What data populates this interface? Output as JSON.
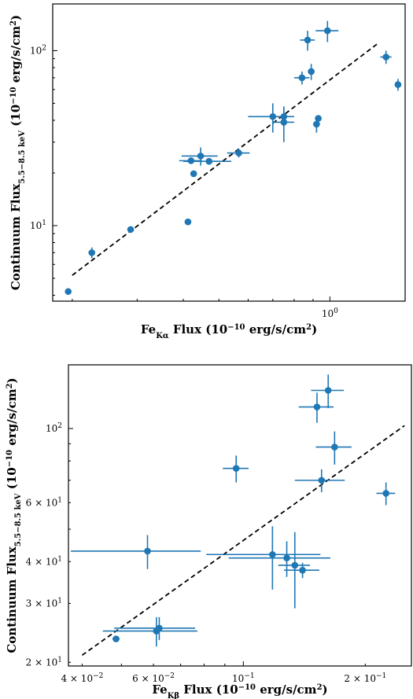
{
  "chart_data": [
    {
      "type": "scatter",
      "title": "",
      "xlabel": "Fe_Kα Flux (10^-10 erg/s/cm^2)",
      "ylabel": "Continuum Flux_5.5-8.5 keV (10^-10 erg/s/cm^2)",
      "xlabel_parts": {
        "main": "Fe",
        "sub": "Kα",
        "rest": " Flux (10",
        "exp": "−10",
        "rest2": " erg/s/cm",
        "exp2": "2",
        "end": ")"
      },
      "ylabel_parts": {
        "main": "Continuum Flux",
        "sub": "5.5−8.5 keV",
        "rest": " (10",
        "exp": "−10",
        "rest2": " erg/s/cm",
        "exp2": "2",
        "end": ")"
      },
      "x_scale": "log",
      "y_scale": "log",
      "xlim": [
        0.177,
        1.6
      ],
      "ylim": [
        3.7,
        185
      ],
      "x_ticks": [
        {
          "value": 1.0,
          "label": "10",
          "exp": "0"
        }
      ],
      "y_ticks": [
        {
          "value": 10,
          "label": "10",
          "exp": "1"
        },
        {
          "value": 100,
          "label": "10",
          "exp": "2"
        }
      ],
      "fit_line": {
        "x": [
          0.2,
          1.35
        ],
        "y": [
          5.2,
          110
        ],
        "style": "dashed",
        "color": "#000000"
      },
      "color": "#1f77b4",
      "points": [
        {
          "x": 0.195,
          "y": 4.2
        },
        {
          "x": 0.226,
          "y": 7.0,
          "xerr": 0.003,
          "yerr": 0.5
        },
        {
          "x": 0.288,
          "y": 9.5
        },
        {
          "x": 0.412,
          "y": 10.5
        },
        {
          "x": 0.42,
          "y": 23.5,
          "xerr": 0.03,
          "yerr": 1.0
        },
        {
          "x": 0.446,
          "y": 25.0,
          "xerr": 0.05,
          "yerr": 3.0
        },
        {
          "x": 0.427,
          "y": 19.8
        },
        {
          "x": 0.47,
          "y": 23.3,
          "xerr": 0.07,
          "yerr": 1.0
        },
        {
          "x": 0.566,
          "y": 26.0,
          "xerr": 0.04,
          "yerr": 1.5
        },
        {
          "x": 0.7,
          "y": 42.0,
          "xerr": 0.1,
          "yerr": 8.0
        },
        {
          "x": 0.75,
          "y": 42.0,
          "xerr": 0.02,
          "yerr": 5.0
        },
        {
          "x": 0.75,
          "y": 39.0,
          "xerr": 0.05,
          "yerr": 9.0
        },
        {
          "x": 0.84,
          "y": 70.0,
          "xerr": 0.04,
          "yerr": 6.0
        },
        {
          "x": 0.87,
          "y": 115.0,
          "xerr": 0.04,
          "yerr": 15.0
        },
        {
          "x": 0.89,
          "y": 76.0,
          "xerr": 0.01,
          "yerr": 8.0
        },
        {
          "x": 0.92,
          "y": 38.0,
          "xerr": 0.02,
          "yerr": 4.0
        },
        {
          "x": 0.93,
          "y": 41.0
        },
        {
          "x": 0.985,
          "y": 130.0,
          "xerr": 0.07,
          "yerr": 18.0
        },
        {
          "x": 1.42,
          "y": 92.0,
          "xerr": 0.05,
          "yerr": 8.0
        },
        {
          "x": 1.53,
          "y": 64.0,
          "xerr": 0.02,
          "yerr": 5.0
        }
      ]
    },
    {
      "type": "scatter",
      "title": "",
      "xlabel": "Fe_Kβ Flux (10^-10 erg/s/cm^2)",
      "ylabel": "Continuum Flux_5.5-8.5 keV (10^-10 erg/s/cm^2)",
      "xlabel_parts": {
        "main": "Fe",
        "sub": "Kβ",
        "rest": " Flux (10",
        "exp": "−10",
        "rest2": " erg/s/cm",
        "exp2": "2",
        "end": ")"
      },
      "ylabel_parts": {
        "main": "Continuum Flux",
        "sub": "5.5−8.5 keV",
        "rest": " (10",
        "exp": "−10",
        "rest2": " erg/s/cm",
        "exp2": "2",
        "end": ")"
      },
      "x_scale": "log",
      "y_scale": "log",
      "xlim": [
        0.037,
        0.26
      ],
      "ylim": [
        19.5,
        155
      ],
      "x_ticks": [
        {
          "value": 0.04,
          "label": "4 × 10",
          "exp": "−2"
        },
        {
          "value": 0.06,
          "label": "6 × 10",
          "exp": "−2"
        },
        {
          "value": 0.1,
          "label": "10",
          "exp": "−1"
        },
        {
          "value": 0.2,
          "label": "2 × 10",
          "exp": "−1"
        }
      ],
      "y_ticks": [
        {
          "value": 20,
          "label": "2 × 10",
          "exp": "1"
        },
        {
          "value": 30,
          "label": "3 × 10",
          "exp": "1"
        },
        {
          "value": 40,
          "label": "4 × 10",
          "exp": "1"
        },
        {
          "value": 60,
          "label": "6 × 10",
          "exp": "1"
        },
        {
          "value": 100,
          "label": "10",
          "exp": "2"
        }
      ],
      "fit_line": {
        "x": [
          0.04,
          0.25
        ],
        "y": [
          21.0,
          102.0
        ],
        "style": "dashed",
        "color": "#000000"
      },
      "color": "#1f77b4",
      "points": [
        {
          "x": 0.0485,
          "y": 23.5,
          "xerr": 0.001
        },
        {
          "x": 0.058,
          "y": 43.0,
          "xerr": 0.0205,
          "yerr": 5.0
        },
        {
          "x": 0.061,
          "y": 24.8,
          "xerr": 0.016,
          "yerr": 2.5
        },
        {
          "x": 0.062,
          "y": 25.3,
          "xerr": 0.014,
          "yerr": 2.0
        },
        {
          "x": 0.096,
          "y": 76.0,
          "xerr": 0.007,
          "yerr": 7.0
        },
        {
          "x": 0.118,
          "y": 42.0,
          "xerr": 0.037,
          "yerr": 9.0
        },
        {
          "x": 0.128,
          "y": 41.0,
          "xerr": 0.036,
          "yerr": 5.0
        },
        {
          "x": 0.134,
          "y": 39.0,
          "xerr": 0.012,
          "yerr": 10.0
        },
        {
          "x": 0.14,
          "y": 37.7,
          "xerr": 0.014,
          "yerr": 2.0
        },
        {
          "x": 0.152,
          "y": 116.0,
          "xerr": 0.015,
          "yerr": 12.0
        },
        {
          "x": 0.156,
          "y": 70.0,
          "xerr": 0.022,
          "yerr": 5.5
        },
        {
          "x": 0.162,
          "y": 130.0,
          "xerr": 0.015,
          "yerr": 15.0
        },
        {
          "x": 0.168,
          "y": 88.0,
          "xerr": 0.017,
          "yerr": 10.0
        },
        {
          "x": 0.225,
          "y": 64.0,
          "xerr": 0.012,
          "yerr": 5.0
        }
      ]
    }
  ]
}
